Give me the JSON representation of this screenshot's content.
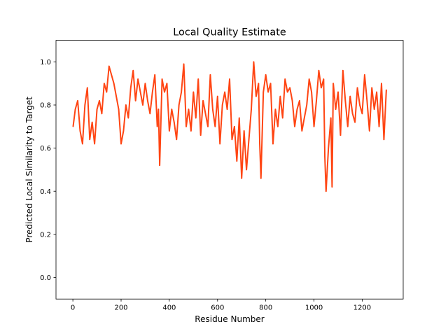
{
  "chart_data": {
    "type": "line",
    "title": "Local Quality Estimate",
    "xlabel": "Residue Number",
    "ylabel": "Predicted Local Similarity to Target",
    "xlim": [
      -70,
      1370
    ],
    "ylim": [
      -0.1,
      1.1
    ],
    "xticks": [
      0,
      200,
      400,
      600,
      800,
      1000,
      1200
    ],
    "yticks": [
      0.0,
      0.2,
      0.4,
      0.6,
      0.8,
      1.0
    ],
    "xtick_labels": [
      "0",
      "200",
      "400",
      "600",
      "800",
      "1000",
      "1200"
    ],
    "ytick_labels": [
      "0.0",
      "0.2",
      "0.4",
      "0.6",
      "0.8",
      "1.0"
    ],
    "grid": false,
    "legend": "none",
    "series": [
      {
        "color": "#ff4513",
        "x": [
          1,
          10,
          20,
          30,
          40,
          50,
          60,
          70,
          80,
          90,
          100,
          110,
          120,
          130,
          140,
          150,
          160,
          170,
          180,
          190,
          200,
          210,
          220,
          230,
          240,
          250,
          260,
          270,
          280,
          290,
          300,
          310,
          320,
          330,
          340,
          350,
          355,
          360,
          370,
          380,
          390,
          400,
          410,
          420,
          430,
          440,
          450,
          460,
          470,
          480,
          490,
          500,
          510,
          520,
          530,
          540,
          550,
          560,
          570,
          580,
          590,
          600,
          610,
          620,
          630,
          640,
          650,
          660,
          670,
          680,
          690,
          700,
          710,
          720,
          730,
          740,
          750,
          760,
          770,
          775,
          780,
          790,
          800,
          810,
          820,
          830,
          840,
          850,
          860,
          870,
          880,
          890,
          900,
          910,
          920,
          930,
          940,
          950,
          960,
          970,
          980,
          990,
          1000,
          1010,
          1020,
          1030,
          1040,
          1045,
          1050,
          1060,
          1070,
          1075,
          1080,
          1090,
          1100,
          1110,
          1120,
          1130,
          1140,
          1150,
          1160,
          1170,
          1180,
          1190,
          1200,
          1210,
          1220,
          1230,
          1240,
          1250,
          1260,
          1270,
          1280,
          1290,
          1300
        ],
        "y": [
          0.7,
          0.78,
          0.82,
          0.68,
          0.62,
          0.8,
          0.88,
          0.64,
          0.72,
          0.62,
          0.78,
          0.82,
          0.76,
          0.9,
          0.86,
          0.98,
          0.94,
          0.9,
          0.84,
          0.78,
          0.62,
          0.68,
          0.8,
          0.74,
          0.88,
          0.96,
          0.82,
          0.92,
          0.86,
          0.8,
          0.9,
          0.82,
          0.76,
          0.86,
          0.94,
          0.7,
          0.78,
          0.52,
          0.92,
          0.86,
          0.9,
          0.68,
          0.78,
          0.72,
          0.64,
          0.8,
          0.86,
          0.99,
          0.7,
          0.78,
          0.68,
          0.86,
          0.74,
          0.92,
          0.66,
          0.82,
          0.76,
          0.7,
          0.94,
          0.78,
          0.7,
          0.84,
          0.62,
          0.8,
          0.86,
          0.78,
          0.92,
          0.64,
          0.7,
          0.54,
          0.74,
          0.46,
          0.68,
          0.5,
          0.64,
          0.78,
          1.0,
          0.84,
          0.9,
          0.62,
          0.46,
          0.86,
          0.94,
          0.86,
          0.9,
          0.62,
          0.78,
          0.7,
          0.84,
          0.74,
          0.92,
          0.86,
          0.88,
          0.82,
          0.7,
          0.78,
          0.82,
          0.68,
          0.74,
          0.8,
          0.92,
          0.86,
          0.7,
          0.82,
          0.96,
          0.88,
          0.92,
          0.56,
          0.4,
          0.6,
          0.74,
          0.42,
          0.9,
          0.78,
          0.86,
          0.66,
          0.96,
          0.82,
          0.7,
          0.84,
          0.76,
          0.72,
          0.88,
          0.8,
          0.76,
          0.94,
          0.82,
          0.68,
          0.88,
          0.78,
          0.86,
          0.7,
          0.9,
          0.64,
          0.87
        ]
      }
    ]
  }
}
